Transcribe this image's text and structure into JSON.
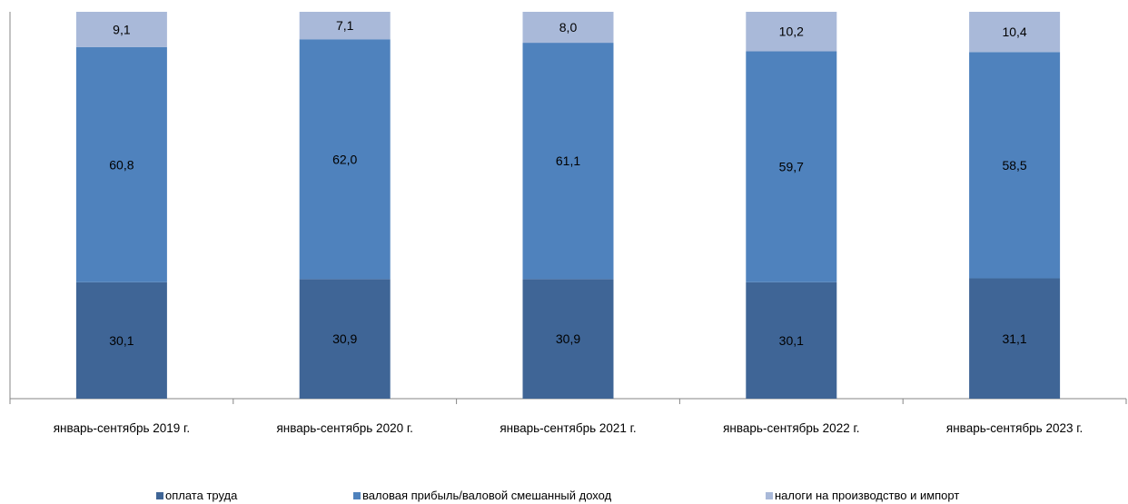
{
  "chart_data": {
    "type": "bar",
    "stacked": true,
    "categories": [
      "январь-сентябрь 2019 г.",
      "январь-сентябрь 2020 г.",
      "январь-сентябрь 2021 г.",
      "январь-сентябрь 2022 г.",
      "январь-сентябрь 2023 г."
    ],
    "series": [
      {
        "name": "оплата труда",
        "color": "#3F6596",
        "values": [
          30.1,
          30.9,
          30.9,
          30.1,
          31.1
        ],
        "labels": [
          "30,1",
          "30,9",
          "30,9",
          "30,1",
          "31,1"
        ]
      },
      {
        "name": "валовая прибыль/валовой смешанный доход",
        "color": "#4F82BD",
        "values": [
          60.8,
          62.0,
          61.1,
          59.7,
          58.5
        ],
        "labels": [
          "60,8",
          "62,0",
          "61,1",
          "59,7",
          "58,5"
        ]
      },
      {
        "name": "налоги на производство и импорт",
        "color": "#A9B9D9",
        "values": [
          9.1,
          7.1,
          8.0,
          10.2,
          10.4
        ],
        "labels": [
          "9,1",
          "7,1",
          "8,0",
          "10,2",
          "10,4"
        ]
      }
    ],
    "ylim": [
      0,
      100
    ],
    "grid": false,
    "legend_position": "bottom"
  }
}
